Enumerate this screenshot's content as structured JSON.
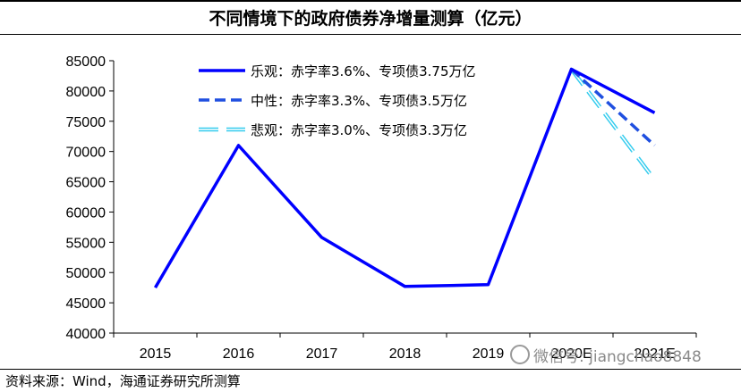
{
  "title": "不同情境下的政府债券净增量测算（亿元）",
  "source": "资料来源：Wind，海通证券研究所测算",
  "watermark": "微信号: jiangchao8848",
  "chart_data": {
    "type": "line",
    "categories": [
      "2015",
      "2016",
      "2017",
      "2018",
      "2019",
      "2020E",
      "2021E"
    ],
    "ylim": [
      40000,
      85000
    ],
    "yticks": [
      40000,
      45000,
      50000,
      55000,
      60000,
      65000,
      70000,
      75000,
      80000,
      85000
    ],
    "grid": false,
    "legend_position": "top-center",
    "series": [
      {
        "name": "乐观：赤字率3.6%、专项债3.75万亿",
        "style": "solid",
        "color": "#0000FF",
        "values": [
          47500,
          71000,
          55800,
          47700,
          48000,
          83600,
          76400
        ]
      },
      {
        "name": "中性：赤字率3.3%、专项债3.5万亿",
        "style": "dashed",
        "color": "#1F4FE0",
        "values": [
          null,
          null,
          null,
          null,
          null,
          83600,
          71000
        ]
      },
      {
        "name": "悲观：赤字率3.0%、专项债3.3万亿",
        "style": "double-dashed",
        "color": "#33CCEE",
        "values": [
          null,
          null,
          null,
          null,
          null,
          83600,
          65300
        ]
      }
    ]
  }
}
